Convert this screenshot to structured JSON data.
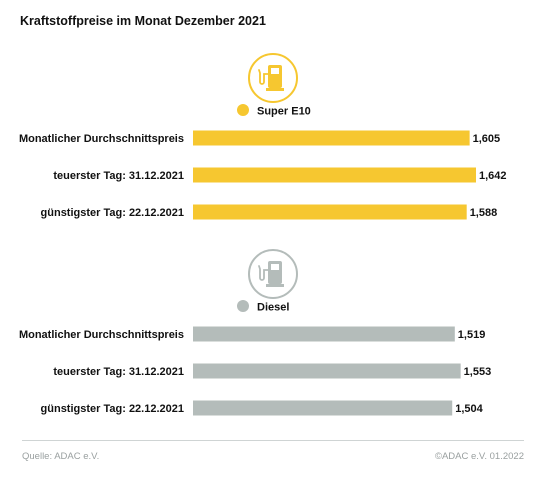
{
  "header": {
    "title": "Kraftstoffpreise im Monat Dezember 2021"
  },
  "footer": {
    "source": "Quelle: ADAC e.V.",
    "copyright": "©ADAC e.V. 01.2022"
  },
  "chart_data": [
    {
      "type": "bar",
      "orientation": "horizontal",
      "series_label": "Super E10",
      "icon": "fuel-pump-icon",
      "color": "#f6c730",
      "icon_circle_color": "#f6c730",
      "categories": [
        "Monatlicher Durchschnittspreis",
        "teuerster Tag: 31.12.2021",
        "günstigster Tag: 22.12.2021"
      ],
      "values": [
        1.605,
        1.642,
        1.588
      ],
      "value_labels": [
        "1,605",
        "1,642",
        "1,588"
      ]
    },
    {
      "type": "bar",
      "orientation": "horizontal",
      "series_label": "Diesel",
      "icon": "fuel-pump-icon",
      "color": "#b4bcba",
      "icon_circle_color": "#b4bcba",
      "categories": [
        "Monatlicher Durchschnittspreis",
        "teuerster Tag: 31.12.2021",
        "günstigster Tag: 22.12.2021"
      ],
      "values": [
        1.519,
        1.553,
        1.504
      ],
      "value_labels": [
        "1,519",
        "1,553",
        "1,504"
      ]
    }
  ]
}
